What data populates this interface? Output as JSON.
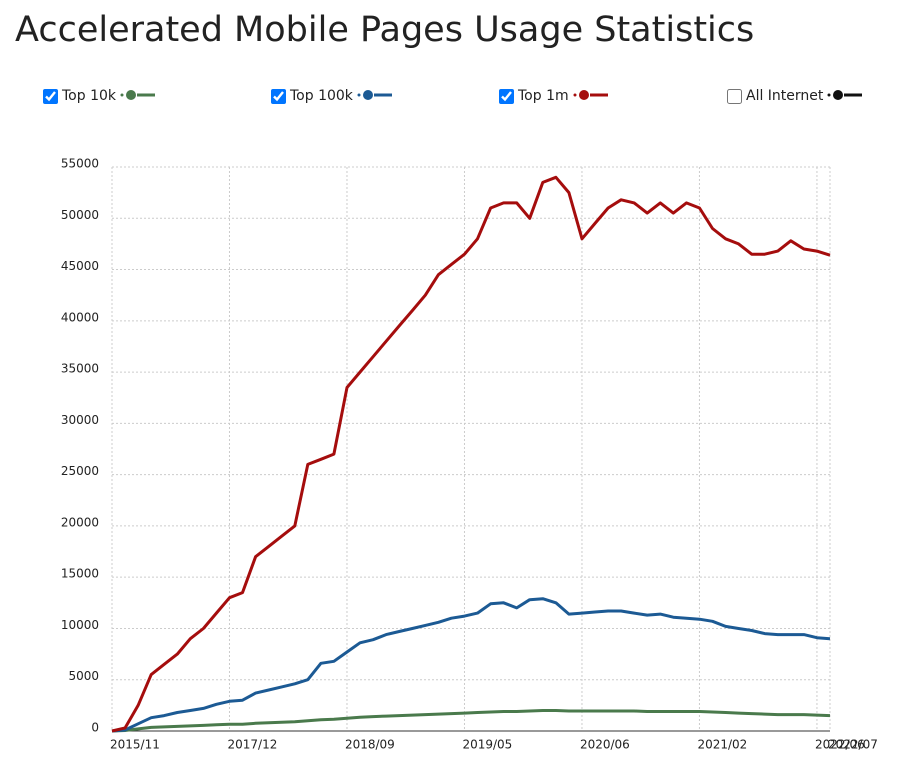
{
  "chart_data": {
    "type": "line",
    "title": "Accelerated Mobile Pages Usage Statistics",
    "categories": [
      "2015/11",
      null,
      null,
      null,
      null,
      null,
      null,
      null,
      null,
      "2017/12",
      null,
      null,
      null,
      null,
      null,
      null,
      null,
      null,
      "2018/09",
      null,
      null,
      null,
      null,
      null,
      null,
      null,
      null,
      "2019/05",
      null,
      null,
      null,
      null,
      null,
      null,
      null,
      null,
      "2020/06",
      null,
      null,
      null,
      null,
      null,
      null,
      null,
      null,
      "2021/02",
      null,
      null,
      null,
      null,
      null,
      null,
      null,
      null,
      "2022/06",
      "2022/07"
    ],
    "series": [
      {
        "name": "Top 10k",
        "color": "#4a7a4c",
        "checked": true,
        "values": [
          0,
          50,
          200,
          350,
          400,
          450,
          500,
          550,
          600,
          650,
          650,
          750,
          800,
          850,
          900,
          1000,
          1100,
          1150,
          1250,
          1350,
          1400,
          1450,
          1500,
          1550,
          1600,
          1650,
          1700,
          1750,
          1800,
          1850,
          1900,
          1900,
          1950,
          2000,
          2000,
          1950,
          1950,
          1950,
          1950,
          1950,
          1950,
          1900,
          1900,
          1900,
          1900,
          1900,
          1850,
          1800,
          1750,
          1700,
          1650,
          1600,
          1600,
          1600,
          1550,
          1500
        ]
      },
      {
        "name": "Top 100k",
        "color": "#1c5a94",
        "checked": true,
        "values": [
          0,
          100,
          700,
          1300,
          1500,
          1800,
          2000,
          2200,
          2600,
          2900,
          3000,
          3700,
          4000,
          4300,
          4600,
          5000,
          6600,
          6800,
          7700,
          8600,
          8900,
          9400,
          9700,
          10000,
          10300,
          10600,
          11000,
          11200,
          11500,
          12400,
          12500,
          12000,
          12800,
          12900,
          12500,
          11400,
          11500,
          11600,
          11700,
          11700,
          11500,
          11300,
          11400,
          11100,
          11000,
          10900,
          10700,
          10200,
          10000,
          9800,
          9500,
          9400,
          9400,
          9400,
          9100,
          9000
        ]
      },
      {
        "name": "Top 1m",
        "color": "#a50d0d",
        "checked": true,
        "values": [
          0,
          300,
          2500,
          5500,
          6500,
          7500,
          9000,
          10000,
          11500,
          13000,
          13500,
          17000,
          18000,
          19000,
          20000,
          26000,
          26500,
          27000,
          33500,
          35000,
          36500,
          38000,
          39500,
          41000,
          42500,
          44500,
          45500,
          46500,
          48000,
          51000,
          51500,
          51500,
          50000,
          53500,
          54000,
          52500,
          48000,
          49500,
          51000,
          51800,
          51500,
          50500,
          51500,
          50500,
          51500,
          51000,
          49000,
          48000,
          47500,
          46500,
          46500,
          46800,
          47800,
          47000,
          46800,
          46400
        ]
      }
    ],
    "unchecked_series": [
      {
        "name": "All Internet",
        "color": "#111111"
      }
    ],
    "ylim": [
      0,
      55000
    ],
    "yticks": [
      0,
      5000,
      10000,
      15000,
      20000,
      25000,
      30000,
      35000,
      40000,
      45000,
      50000,
      55000
    ],
    "grid": true
  }
}
